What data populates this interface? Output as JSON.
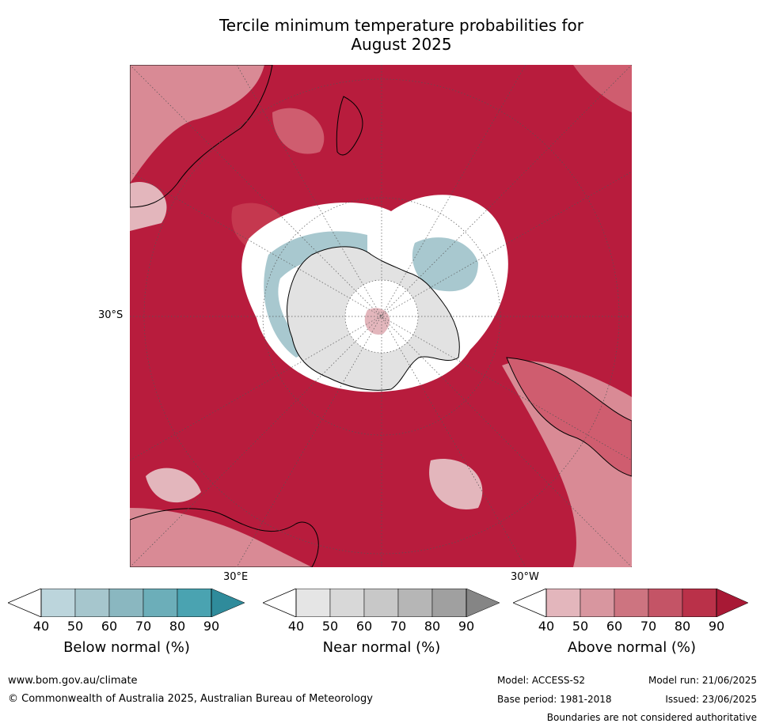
{
  "title_line1": "Tercile minimum temperature probabilities for",
  "title_line2": "August 2025",
  "map": {
    "latitude_label": "30°S",
    "longitude_label_east": "30°E",
    "longitude_label_west": "30°W",
    "colors": {
      "ocean_strong_above": "#b81c3d",
      "above_80": "#c5384f",
      "above_70": "#cf5d6f",
      "above_60": "#d98a95",
      "above_50": "#e3b6bc",
      "near_normal_light": "#e6e6e6",
      "near_normal": "#d5d5d5",
      "below_normal": "#a8c8cf",
      "white": "#ffffff"
    }
  },
  "colorbars": [
    {
      "label": "Below normal (%)",
      "ticks": [
        "40",
        "50",
        "60",
        "70",
        "80",
        "90"
      ],
      "colors": [
        "#bcd5dc",
        "#a6c6cd",
        "#8ab7c0",
        "#6caeb9",
        "#4aa3b1",
        "#2f8b9b"
      ]
    },
    {
      "label": "Near normal (%)",
      "ticks": [
        "40",
        "50",
        "60",
        "70",
        "80",
        "90"
      ],
      "colors": [
        "#e5e5e5",
        "#d8d8d8",
        "#c8c8c8",
        "#b6b6b6",
        "#a0a0a0",
        "#858585"
      ]
    },
    {
      "label": "Above normal (%)",
      "ticks": [
        "40",
        "50",
        "60",
        "70",
        "80",
        "90"
      ],
      "colors": [
        "#e3b6bc",
        "#d8969f",
        "#cd7480",
        "#c45466",
        "#ba3149",
        "#a81935"
      ]
    }
  ],
  "footer": {
    "website": "www.bom.gov.au/climate",
    "copyright": "© Commonwealth of Australia 2025, Australian Bureau of Meteorology",
    "model": "Model: ACCESS-S2",
    "model_run": "Model run: 21/06/2025",
    "base_period": "Base period: 1981-2018",
    "issued": "Issued: 23/06/2025",
    "disclaimer": "Boundaries are not considered authoritative"
  }
}
